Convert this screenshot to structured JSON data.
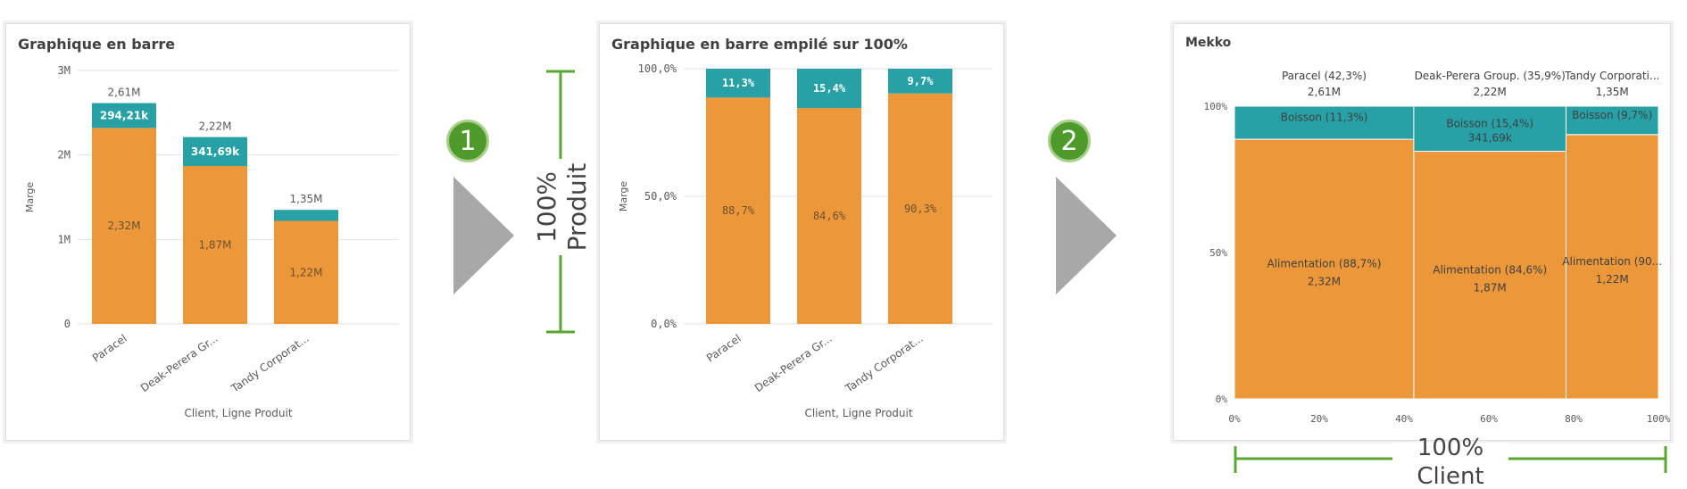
{
  "colors": {
    "food": "#eb973a",
    "drink": "#27a1a5",
    "annotation": "#5aa832",
    "arrow": "#a8a8a8"
  },
  "steps": [
    "1",
    "2"
  ],
  "annotation_produit": {
    "line1": "100%",
    "line2": "Produit"
  },
  "annotation_client": {
    "line1": "100%",
    "line2": "Client"
  },
  "chart_data": [
    {
      "type": "bar",
      "stacked": true,
      "title": "Graphique en barre",
      "xlabel": "Client, Ligne Produit",
      "ylabel": "Marge",
      "ylim": [
        0,
        3000000
      ],
      "yticks": [
        "0",
        "1M",
        "2M",
        "3M"
      ],
      "categories": [
        "Paracel",
        "Deak-Perera Gr...",
        "Tandy Corporat..."
      ],
      "series": [
        {
          "name": "Alimentation",
          "values": [
            2320000,
            1870000,
            1220000
          ],
          "labels": [
            "2,32M",
            "1,87M",
            "1,22M"
          ]
        },
        {
          "name": "Boisson",
          "values": [
            294210,
            341690,
            130000
          ],
          "labels": [
            "294,21k",
            "341,69k",
            ""
          ]
        }
      ],
      "totals": [
        "2,61M",
        "2,22M",
        "1,35M"
      ]
    },
    {
      "type": "bar",
      "stacked": true,
      "title": "Graphique en barre empilé sur 100%",
      "xlabel": "Client, Ligne Produit",
      "ylabel": "Marge",
      "ylim": [
        0,
        100
      ],
      "yticks": [
        "0,0%",
        "50,0%",
        "100,0%"
      ],
      "categories": [
        "Paracel",
        "Deak-Perera Gr...",
        "Tandy Corporat..."
      ],
      "series": [
        {
          "name": "Alimentation",
          "values": [
            88.7,
            84.6,
            90.3
          ],
          "labels": [
            "88,7%",
            "84,6%",
            "90,3%"
          ]
        },
        {
          "name": "Boisson",
          "values": [
            11.3,
            15.4,
            9.7
          ],
          "labels": [
            "11,3%",
            "15,4%",
            "9,7%"
          ]
        }
      ]
    },
    {
      "type": "mekko",
      "title": "Mekko",
      "xticks": [
        "0%",
        "20%",
        "40%",
        "60%",
        "80%",
        "100%"
      ],
      "yticks": [
        "0%",
        "50%",
        "100%"
      ],
      "columns": [
        {
          "label": "Paracel (42,3%)",
          "total": "2,61M",
          "width": 42.3,
          "segments": [
            {
              "name": "Alimentation",
              "value": 88.7,
              "label": "Alimentation (88,7%)",
              "sub": "2,32M"
            },
            {
              "name": "Boisson",
              "value": 11.3,
              "label": "Boisson (11,3%)",
              "sub": ""
            }
          ]
        },
        {
          "label": "Deak-Perera Group. (35,9%)",
          "total": "2,22M",
          "width": 35.9,
          "segments": [
            {
              "name": "Alimentation",
              "value": 84.6,
              "label": "Alimentation (84,6%)",
              "sub": "1,87M"
            },
            {
              "name": "Boisson",
              "value": 15.4,
              "label": "Boisson (15,4%)",
              "sub": "341,69k"
            }
          ]
        },
        {
          "label": "Tandy Corporati...",
          "total": "1,35M",
          "width": 21.8,
          "segments": [
            {
              "name": "Alimentation",
              "value": 90.3,
              "label": "Alimentation (90...",
              "sub": "1,22M"
            },
            {
              "name": "Boisson",
              "value": 9.7,
              "label": "Boisson (9,7%)",
              "sub": ""
            }
          ]
        }
      ]
    }
  ]
}
